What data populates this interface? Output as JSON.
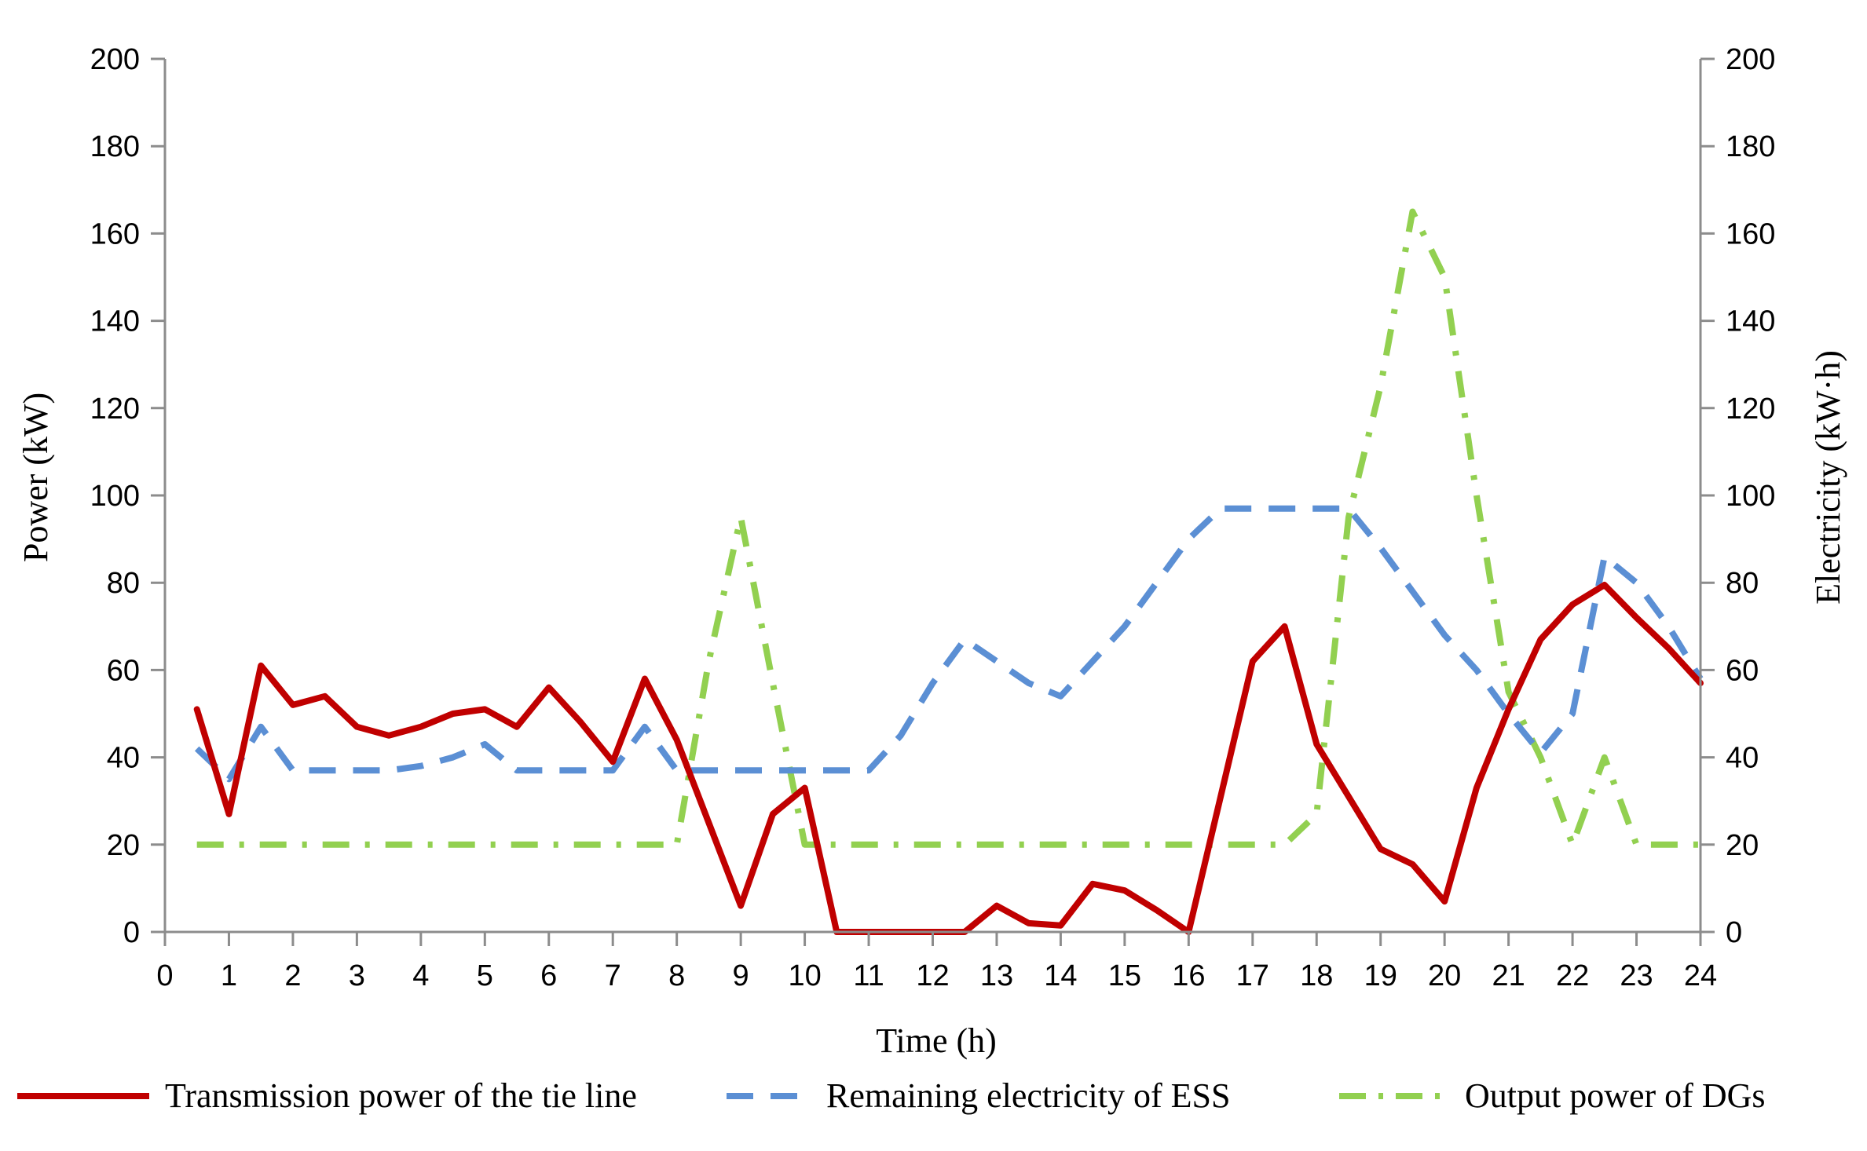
{
  "chart_data": {
    "type": "line",
    "title": "",
    "xlabel": "Time (h)",
    "ylabel_left": "Power (kW)",
    "ylabel_right": "Electricity (kW·h)",
    "xlim": [
      0,
      24
    ],
    "ylim_left": [
      0,
      200
    ],
    "ylim_right": [
      0,
      200
    ],
    "x_ticks": [
      "0",
      "1",
      "2",
      "3",
      "4",
      "5",
      "6",
      "7",
      "8",
      "9",
      "10",
      "11",
      "12",
      "13",
      "14",
      "15",
      "16",
      "17",
      "18",
      "19",
      "20",
      "21",
      "22",
      "23",
      "24"
    ],
    "y_ticks_left": [
      "0",
      "20",
      "40",
      "60",
      "80",
      "100",
      "120",
      "140",
      "160",
      "180",
      "200"
    ],
    "y_ticks_right": [
      "0",
      "20",
      "40",
      "60",
      "80",
      "100",
      "120",
      "140",
      "160",
      "180",
      "200"
    ],
    "grid": false,
    "legend_position": "bottom",
    "series": [
      {
        "name": "Transmission power of the tie line",
        "axis": "left",
        "color": "#c00000",
        "style": "solid",
        "x": [
          0.5,
          1,
          1.5,
          2,
          2.5,
          3,
          3.5,
          4,
          4.5,
          5,
          5.5,
          6,
          6.5,
          7,
          7.5,
          8,
          8.5,
          9,
          9.5,
          10,
          10.5,
          11,
          11.5,
          12,
          12.5,
          13,
          13.5,
          14,
          14.5,
          15,
          15.5,
          16,
          16.5,
          17,
          17.5,
          18,
          18.5,
          19,
          19.5,
          20,
          20.5,
          21,
          21.5,
          22,
          22.5,
          23,
          23.5,
          24
        ],
        "y": [
          51,
          27,
          61,
          52,
          54,
          47,
          45,
          47,
          50,
          51,
          47,
          56,
          48,
          39,
          58,
          44,
          25,
          6,
          27,
          33,
          0,
          0,
          0,
          0,
          0,
          6,
          2,
          1.5,
          11,
          9.5,
          5,
          0,
          31,
          62,
          70,
          43,
          31,
          19,
          15.5,
          7,
          33,
          51,
          67,
          75,
          79.5,
          72,
          65,
          57
        ]
      },
      {
        "name": "Remaining electricity of ESS",
        "axis": "right",
        "color": "#5b8fd4",
        "style": "dashed",
        "x": [
          0.5,
          1,
          1.5,
          2,
          2.5,
          3,
          3.5,
          4,
          4.5,
          5,
          5.5,
          6,
          6.5,
          7,
          7.5,
          8,
          8.5,
          9,
          9.5,
          10,
          10.5,
          11,
          11.5,
          12,
          12.5,
          13,
          13.5,
          14,
          14.5,
          15,
          15.5,
          16,
          16.5,
          17,
          17.5,
          18,
          18.5,
          19,
          19.5,
          20,
          20.5,
          21,
          21.5,
          22,
          22.5,
          23,
          23.5,
          24
        ],
        "y": [
          42,
          35,
          47,
          37,
          37,
          37,
          37,
          38,
          40,
          43,
          37,
          37,
          37,
          37,
          47,
          37,
          37,
          37,
          37,
          37,
          37,
          37,
          45,
          57,
          67,
          62,
          57,
          54,
          62,
          70,
          80,
          90,
          97,
          97,
          97,
          97,
          97,
          88,
          78,
          68,
          60,
          50,
          41,
          50,
          86,
          80,
          70,
          58
        ]
      },
      {
        "name": "Output power of DGs",
        "axis": "left",
        "color": "#92d050",
        "style": "dashdot",
        "x": [
          0.5,
          1,
          1.5,
          2,
          2.5,
          3,
          3.5,
          4,
          4.5,
          5,
          5.5,
          6,
          6.5,
          7,
          7.5,
          8,
          8.5,
          9,
          9.5,
          10,
          10.5,
          11,
          11.5,
          12,
          12.5,
          13,
          13.5,
          14,
          14.5,
          15,
          15.5,
          16,
          16.5,
          17,
          17.5,
          18,
          18.5,
          19,
          19.5,
          20,
          20.5,
          21,
          21.5,
          22,
          22.5,
          23,
          23.5,
          24
        ],
        "y": [
          20,
          20,
          20,
          20,
          20,
          20,
          20,
          20,
          20,
          20,
          20,
          20,
          20,
          20,
          20,
          20,
          62,
          95,
          57,
          20,
          20,
          20,
          20,
          20,
          20,
          20,
          20,
          20,
          20,
          20,
          20,
          20,
          20,
          20,
          20,
          27,
          95,
          125,
          165,
          150,
          100,
          55,
          40,
          20,
          40,
          20,
          20,
          20
        ]
      }
    ]
  }
}
